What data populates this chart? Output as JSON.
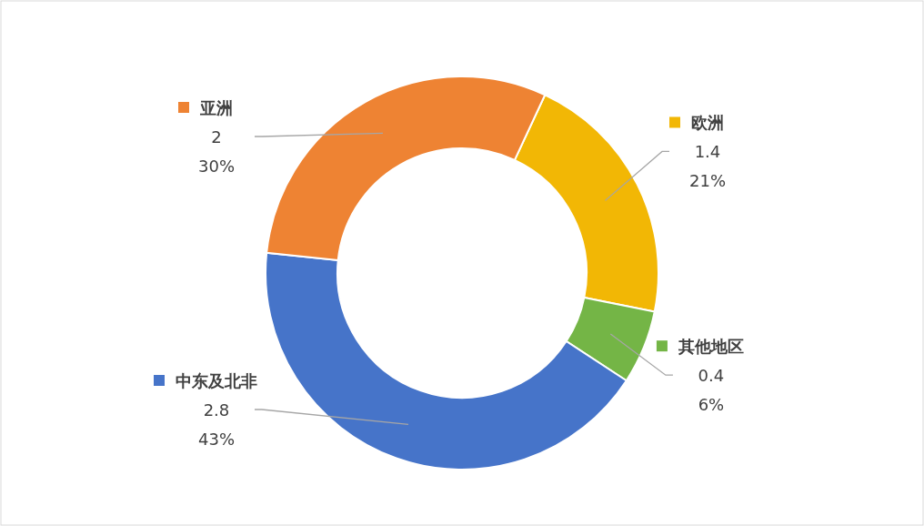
{
  "chart_data": {
    "type": "donut",
    "categories": [
      "欧洲",
      "其他地区",
      "中东及北非",
      "亚洲"
    ],
    "values": [
      1.4,
      0.4,
      2.8,
      2
    ],
    "colors": [
      "#f2b705",
      "#74b546",
      "#4674c9",
      "#ee8333"
    ],
    "legend": "right",
    "value_labels": [
      "1.4\n21%",
      "0.4\n6%",
      "2.8\n43%",
      "2\n30%"
    ]
  }
}
